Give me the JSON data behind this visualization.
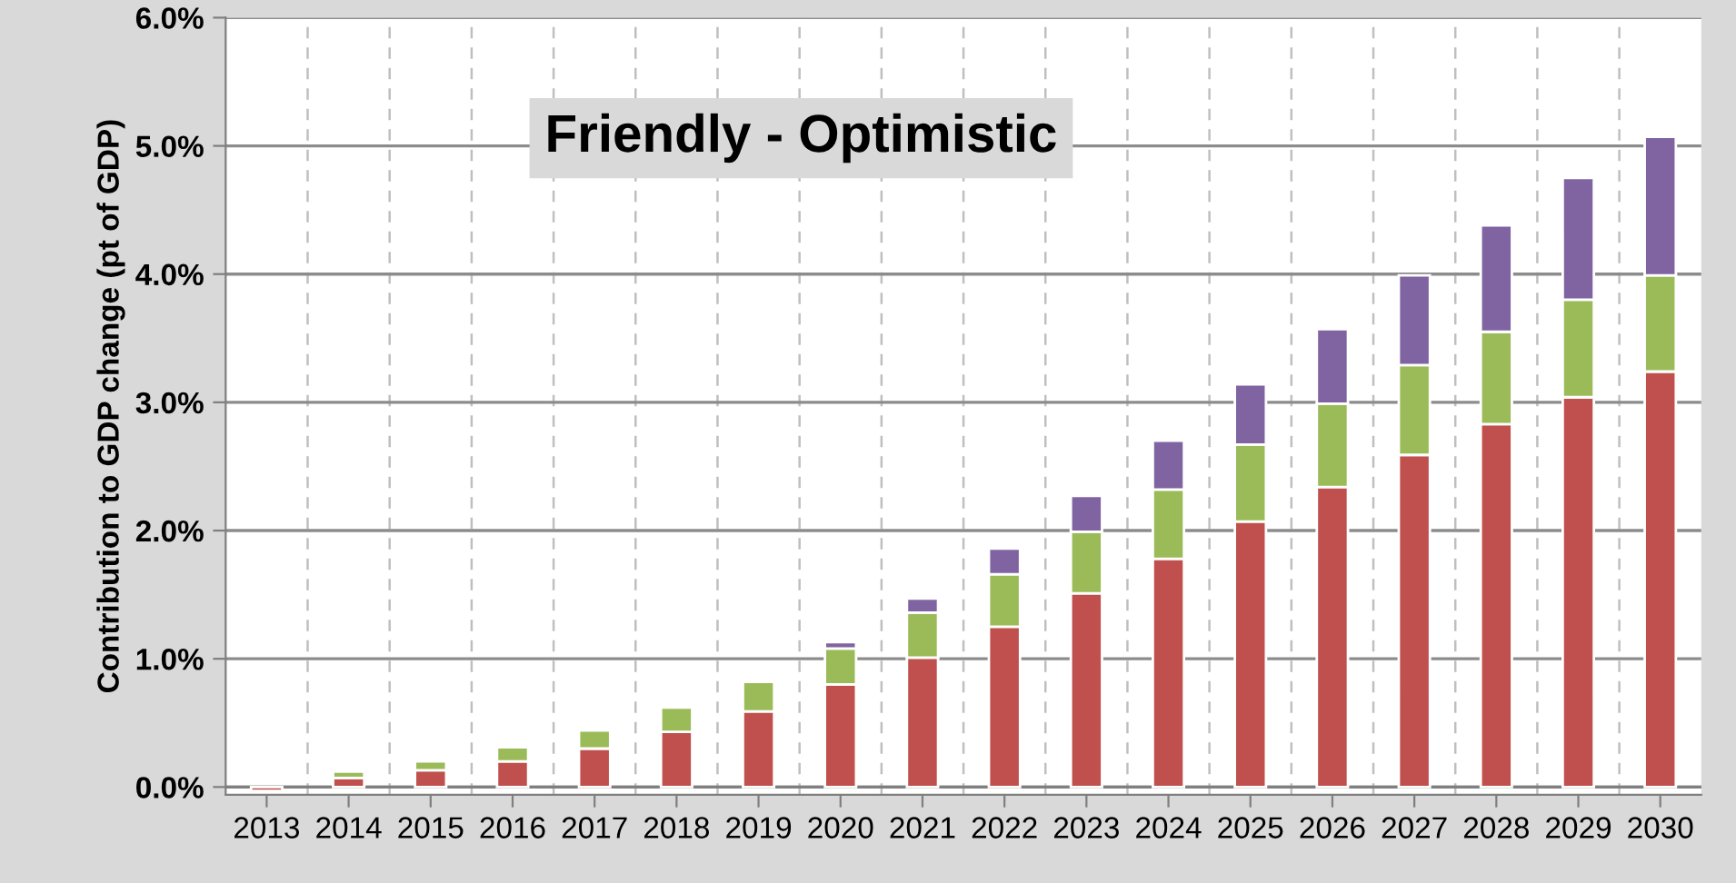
{
  "chart_data": {
    "type": "bar",
    "title": "Friendly - Optimistic",
    "ylabel": "Contribution to GDP change (pt of GDP)",
    "stacked": true,
    "categories": [
      "2013",
      "2014",
      "2015",
      "2016",
      "2017",
      "2018",
      "2019",
      "2020",
      "2021",
      "2022",
      "2023",
      "2024",
      "2025",
      "2026",
      "2027",
      "2028",
      "2029",
      "2030"
    ],
    "series": [
      {
        "color": "#c0504d",
        "values": [
          -0.03,
          0.07,
          0.13,
          0.2,
          0.3,
          0.43,
          0.59,
          0.8,
          1.01,
          1.25,
          1.51,
          1.78,
          2.07,
          2.34,
          2.59,
          2.83,
          3.04,
          3.24
        ]
      },
      {
        "color": "#9bbb59",
        "values": [
          null,
          0.05,
          0.07,
          0.11,
          0.14,
          0.19,
          0.23,
          0.28,
          0.35,
          0.41,
          0.48,
          0.54,
          0.6,
          0.65,
          0.7,
          0.72,
          0.76,
          0.75
        ]
      },
      {
        "color": "#8064a2",
        "values": [
          null,
          null,
          null,
          null,
          null,
          null,
          null,
          0.05,
          0.11,
          0.2,
          0.28,
          0.38,
          0.47,
          0.58,
          0.7,
          0.83,
          0.95,
          1.08
        ]
      }
    ],
    "ylim": [
      -0.06,
      6.0
    ],
    "yticks": [
      {
        "value": 0,
        "label": "0.0%"
      },
      {
        "value": 1,
        "label": "1.0%"
      },
      {
        "value": 2,
        "label": "2.0%"
      },
      {
        "value": 3,
        "label": "3.0%"
      },
      {
        "value": 4,
        "label": "4.0%"
      },
      {
        "value": 5,
        "label": "5.0%"
      },
      {
        "value": 6,
        "label": "6.0%"
      }
    ],
    "grid": true
  }
}
